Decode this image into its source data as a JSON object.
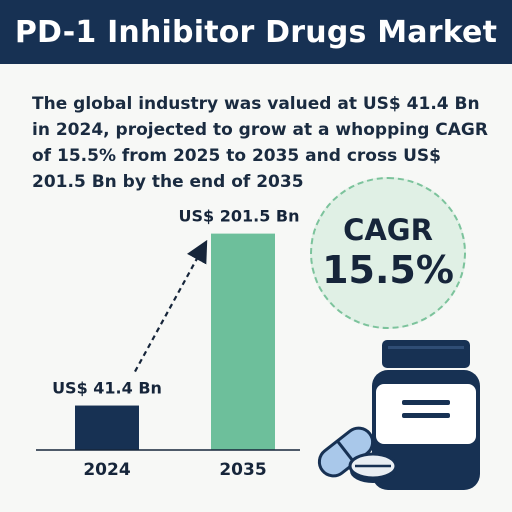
{
  "header": {
    "title": "PD-1 Inhibitor Drugs Market"
  },
  "summary": {
    "text": "The global industry was valued at US$ 41.4 Bn in 2024, projected to grow at a whopping CAGR of 15.5% from 2025 to 2035 and cross US$ 201.5 Bn by the end of 2035"
  },
  "cagr": {
    "label": "CAGR",
    "value": "15.5%"
  },
  "colors": {
    "navy": "#173153",
    "mint": "#6dbf9b",
    "pill_blue": "#a9c8ea"
  },
  "icons": [
    "trend-arrow-icon",
    "medicine-bottle-icon",
    "capsule-icon",
    "tablet-icon"
  ],
  "chart_data": {
    "type": "bar",
    "categories": [
      "2024",
      "2035"
    ],
    "values": [
      41.4,
      201.5
    ],
    "value_labels": [
      "US$ 41.4 Bn",
      "US$ 201.5 Bn"
    ],
    "unit": "US$ Bn",
    "ylim": [
      0,
      230
    ],
    "colors": [
      "#173153",
      "#6dbf9b"
    ],
    "grid": false,
    "legend": "none"
  }
}
